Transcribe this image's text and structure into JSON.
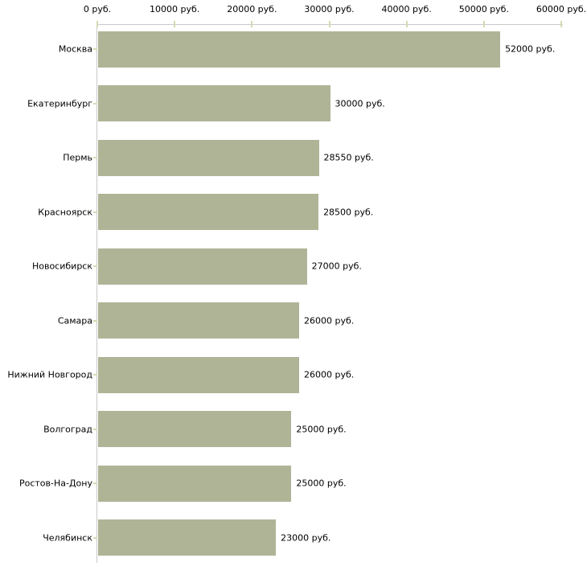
{
  "chart_data": {
    "type": "bar",
    "orientation": "horizontal",
    "title": "",
    "xlabel": "",
    "ylabel": "",
    "unit": "руб.",
    "categories": [
      "Москва",
      "Екатеринбург",
      "Пермь",
      "Красноярск",
      "Новосибирск",
      "Самара",
      "Нижний Новгород",
      "Волгоград",
      "Ростов-На-Дону",
      "Челябинск"
    ],
    "values": [
      52000,
      30000,
      28550,
      28500,
      27000,
      26000,
      26000,
      25000,
      25000,
      23000
    ],
    "value_labels": [
      "52000 руб.",
      "30000 руб.",
      "28550 руб.",
      "28500 руб.",
      "27000 руб.",
      "26000 руб.",
      "26000 руб.",
      "25000 руб.",
      "25000 руб.",
      "23000 руб."
    ],
    "value_axis": {
      "position": "top",
      "min": 0,
      "max": 60000,
      "ticks": [
        0,
        10000,
        20000,
        30000,
        40000,
        50000,
        60000
      ],
      "tick_labels": [
        "0 руб.",
        "10000 руб.",
        "20000 руб.",
        "30000 руб.",
        "40000 руб.",
        "50000 руб.",
        "60000 руб."
      ]
    },
    "grid": false,
    "legend": false,
    "colors": {
      "bar": "#afb496",
      "axis_line": "#c9c9c9",
      "tick_mark": "#d6d9b4",
      "text": "#000000",
      "background": "#ffffff"
    }
  }
}
